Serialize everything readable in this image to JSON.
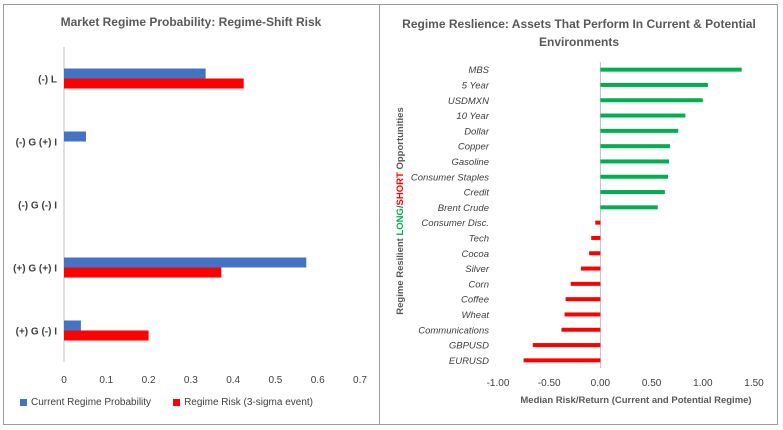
{
  "chart_data": [
    {
      "type": "bar",
      "orientation": "horizontal",
      "title": "Market Regime Probability: Regime-Shift Risk",
      "categories": [
        "(-) L",
        "(-) G (+) I",
        "(-) G (-) I",
        "(+) G (+) I",
        "(+) G (-) I"
      ],
      "series": [
        {
          "name": "Current Regime Probability",
          "color": "#4472C4",
          "values": [
            0.335,
            0.052,
            0.0,
            0.573,
            0.04
          ]
        },
        {
          "name": "Regime Risk (3-sigma event)",
          "color": "#FF0000",
          "values": [
            0.425,
            0.0,
            0.0,
            0.372,
            0.2
          ]
        }
      ],
      "xlim": [
        0,
        0.7
      ],
      "xticks": [
        "0",
        "0.1",
        "0.2",
        "0.3",
        "0.4",
        "0.5",
        "0.6",
        "0.7"
      ],
      "grid": false,
      "legend": "bottom"
    },
    {
      "type": "bar",
      "orientation": "horizontal",
      "title": "Regime Reslience: Assets That Perform In Current & Potential Environments",
      "ylabel_parts": [
        {
          "text": "Regime Resilient ",
          "color": "#595959"
        },
        {
          "text": "LONG",
          "color": "#00B050"
        },
        {
          "text": "/",
          "color": "#595959"
        },
        {
          "text": "SHORT",
          "color": "#FF0000"
        },
        {
          "text": " Opportunities",
          "color": "#595959"
        }
      ],
      "xlabel": "Median Risk/Return (Current and Potential Regime)",
      "categories": [
        "MBS",
        "5 Year",
        "USDMXN",
        "10 Year",
        "Dollar",
        "Copper",
        "Gasoline",
        "Consumer Staples",
        "Credit",
        "Brent Crude",
        "Consumer Disc.",
        "Tech",
        "Cocoa",
        "Silver",
        "Corn",
        "Coffee",
        "Wheat",
        "Communications",
        "GBPUSD",
        "EURUSD"
      ],
      "values": [
        1.38,
        1.05,
        1.0,
        0.83,
        0.76,
        0.68,
        0.67,
        0.66,
        0.63,
        0.56,
        -0.05,
        -0.09,
        -0.11,
        -0.19,
        -0.29,
        -0.34,
        -0.35,
        -0.38,
        -0.66,
        -0.75
      ],
      "positive_color": "#00B050",
      "negative_color": "#FF0000",
      "xlim": [
        -1.0,
        1.5
      ],
      "xticks": [
        "-1.00",
        "-0.50",
        "0.00",
        "0.50",
        "1.00",
        "1.50"
      ],
      "grid": false
    }
  ]
}
